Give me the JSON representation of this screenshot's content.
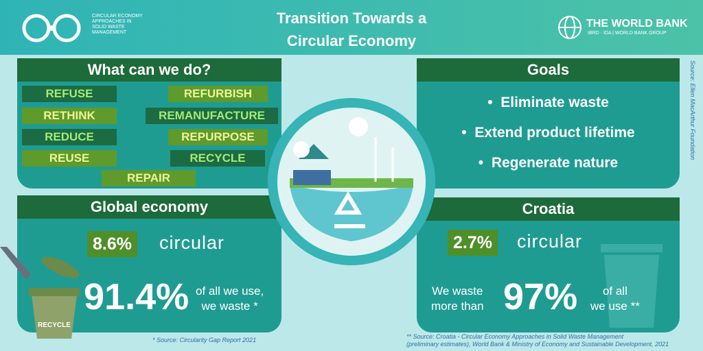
{
  "header": {
    "logo_text": [
      "CIRCULAR ECONOMY",
      "APPROACHES IN",
      "SOLID WASTE",
      "MANAGEMENT"
    ],
    "title": [
      "Transition Towards a",
      "Circular Economy"
    ],
    "org": "THE WORLD BANK",
    "org_sub": "IBRD · IDA | WORLD BANK GROUP"
  },
  "source_side": "Source: Ellen MacArthur Foundation",
  "actions": {
    "title": "What can we do?",
    "items": [
      "REFUSE",
      "REFURBISH",
      "RETHINK",
      "REMANUFACTURE",
      "REDUCE",
      "REPURPOSE",
      "REUSE",
      "RECYCLE",
      "REPAIR"
    ]
  },
  "goals": {
    "title": "Goals",
    "items": [
      "Eliminate waste",
      "Extend product lifetime",
      "Regenerate nature"
    ]
  },
  "global": {
    "title": "Global economy",
    "stat": "8.6%",
    "stat_label": "circular",
    "waste_stat": "91.4%",
    "waste_text": [
      "of all we use,",
      "we waste *"
    ],
    "bin_label": "RECYCLE",
    "footnote": "* Source: Circularity Gap Report 2021"
  },
  "croatia": {
    "title": "Croatia",
    "stat": "2.7%",
    "stat_label": "circular",
    "waste_pre": [
      "We waste",
      "more than"
    ],
    "waste_stat": "97%",
    "waste_text": [
      "of all",
      "we use **"
    ],
    "footnote": [
      "** Source: Croatia - Circular Economy Approaches in Solid Waste Management",
      "(preliminary estimates), World Bank & Ministry of Economy and Sustainable Development, 2021"
    ]
  }
}
